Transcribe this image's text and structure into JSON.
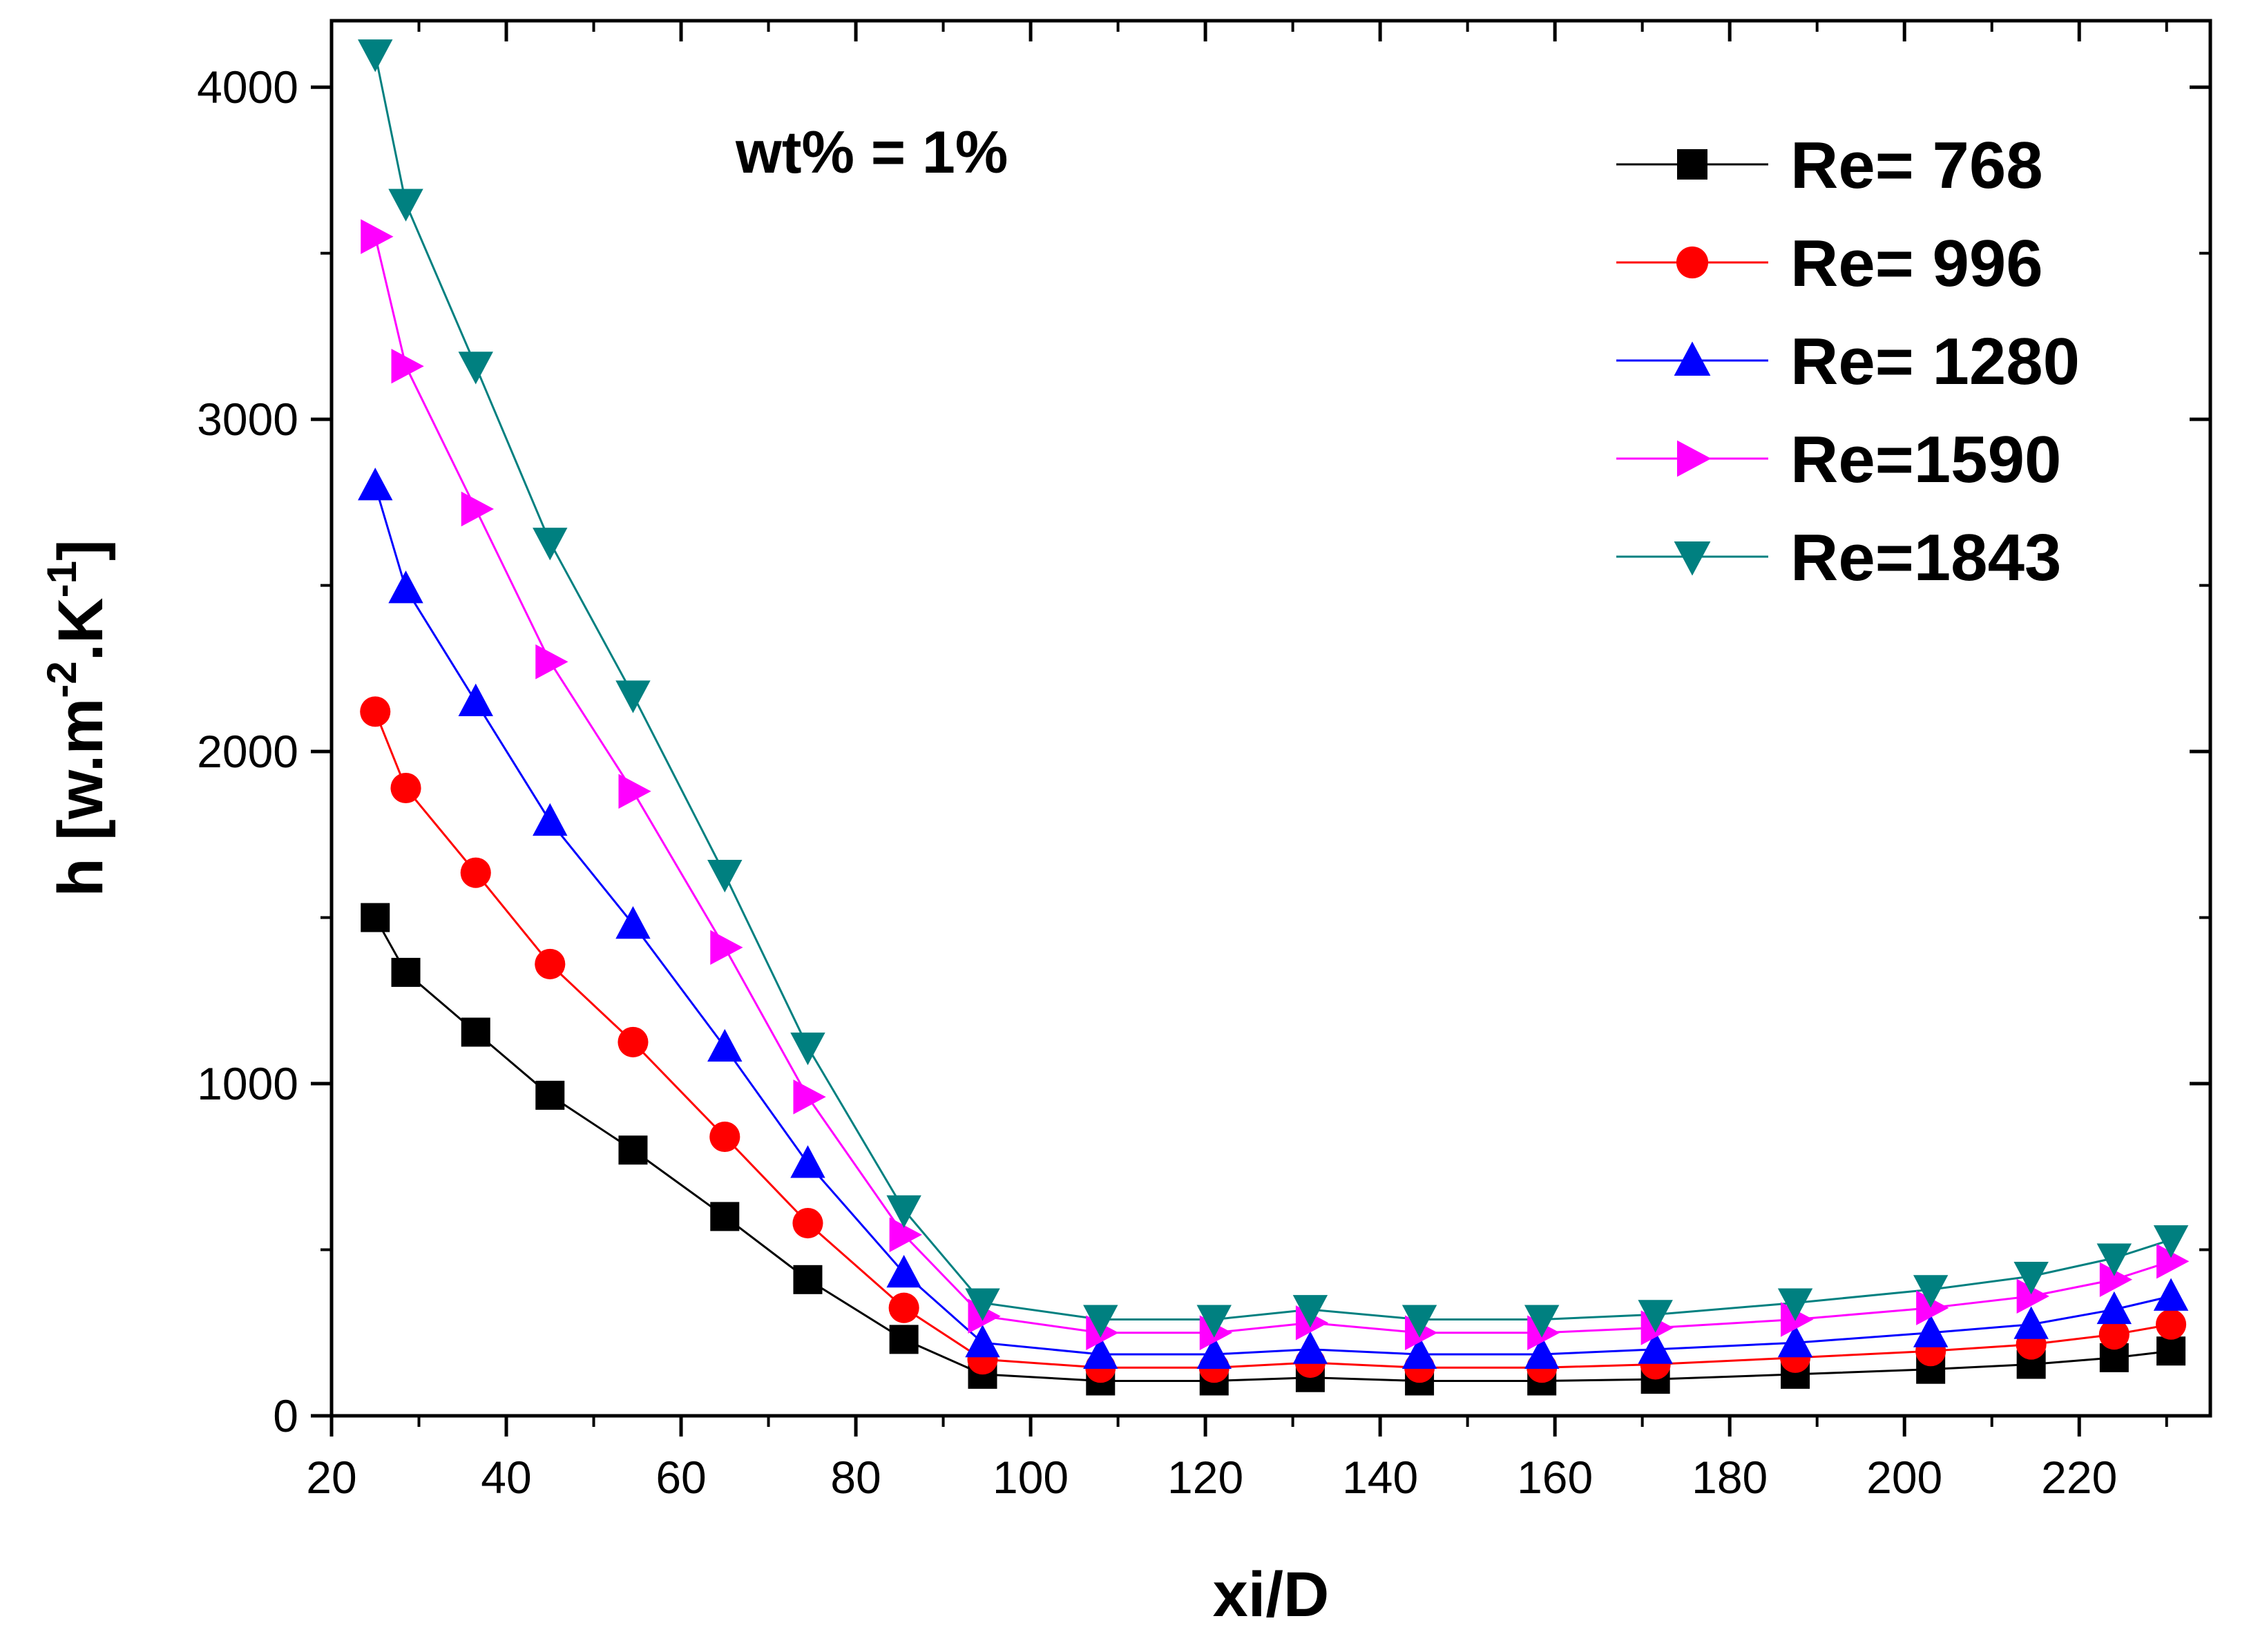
{
  "chart_data": {
    "type": "line",
    "annotation": "wt% = 1%",
    "xlabel": "xi/D",
    "ylabel": {
      "prefix": "h [w.m",
      "sup1": "-2",
      "mid": ".K",
      "sup2": "-1",
      "suffix": "]"
    },
    "xlim": [
      20,
      235
    ],
    "ylim": [
      0,
      4200
    ],
    "xticks": [
      20,
      40,
      60,
      80,
      100,
      120,
      140,
      160,
      180,
      200,
      220
    ],
    "yticks": [
      0,
      1000,
      2000,
      3000,
      4000
    ],
    "grid": false,
    "legend_position": "top-right",
    "x": [
      25,
      28.5,
      36.5,
      45,
      54.5,
      65,
      74.5,
      85.5,
      94.5,
      108,
      121,
      132,
      144.5,
      158.5,
      171.5,
      187.5,
      203,
      214.5,
      224,
      230.5
    ],
    "series": [
      {
        "name": "Re= 768",
        "color": "#000000",
        "marker": "square",
        "values": [
          1500,
          1335,
          1155,
          965,
          800,
          600,
          410,
          230,
          125,
          105,
          105,
          115,
          105,
          105,
          110,
          125,
          140,
          155,
          175,
          195
        ]
      },
      {
        "name": "Re= 996",
        "color": "#ff0000",
        "marker": "circle",
        "values": [
          2120,
          1890,
          1635,
          1360,
          1125,
          840,
          580,
          325,
          170,
          145,
          145,
          160,
          145,
          145,
          155,
          175,
          195,
          215,
          245,
          275
        ]
      },
      {
        "name": "Re= 1280",
        "color": "#0000ff",
        "marker": "triangle-up",
        "values": [
          2800,
          2490,
          2150,
          1790,
          1480,
          1110,
          760,
          430,
          220,
          185,
          185,
          200,
          185,
          185,
          200,
          220,
          250,
          275,
          320,
          360
        ]
      },
      {
        "name": "Re=1590",
        "color": "#ff00ff",
        "marker": "triangle-right",
        "values": [
          3550,
          3160,
          2730,
          2270,
          1880,
          1410,
          960,
          545,
          300,
          250,
          250,
          280,
          250,
          250,
          265,
          290,
          325,
          360,
          410,
          465
        ]
      },
      {
        "name": "Re=1843",
        "color": "#008080",
        "marker": "triangle-down",
        "values": [
          4100,
          3650,
          3160,
          2630,
          2170,
          1630,
          1110,
          620,
          340,
          290,
          290,
          320,
          290,
          290,
          305,
          340,
          380,
          420,
          475,
          530
        ]
      }
    ]
  }
}
